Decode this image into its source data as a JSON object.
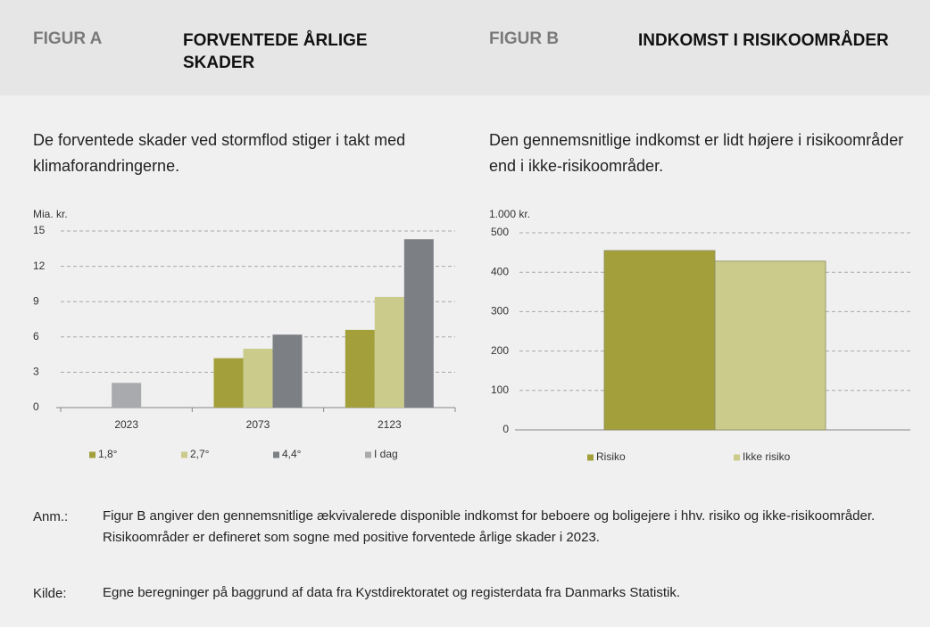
{
  "chart_data": [
    {
      "type": "bar",
      "label": "FIGUR A",
      "title": "FORVENTEDE ÅRLIGE SKADER",
      "subtitle": "De forventede skader ved stormflod stiger i takt med klimaforandringerne.",
      "ylabel": "Mia. kr.",
      "categories": [
        "2023",
        "2073",
        "2123"
      ],
      "series": [
        {
          "name": "1,8°",
          "color": "#a3a03c",
          "values": [
            null,
            4.2,
            6.6
          ]
        },
        {
          "name": "2,7°",
          "color": "#cbcb8c",
          "values": [
            null,
            5.0,
            9.4
          ]
        },
        {
          "name": "4,4°",
          "color": "#7c7f83",
          "values": [
            null,
            6.2,
            14.3
          ]
        },
        {
          "name": "I dag",
          "color": "#a8aaad",
          "values": [
            2.1,
            null,
            null
          ]
        }
      ],
      "ylim": [
        0,
        15
      ],
      "yticks": [
        0,
        3,
        6,
        9,
        12,
        15
      ],
      "grid": true
    },
    {
      "type": "bar",
      "label": "FIGUR B",
      "title": "INDKOMST I RISIKOOMRÅDER",
      "subtitle": "Den gennemsnitlige indkomst er lidt højere i risikoområder end i ikke-risikoområder.",
      "ylabel": "1.000 kr.",
      "categories": [
        null
      ],
      "series": [
        {
          "name": "Risiko",
          "color": "#a3a03c",
          "values": [
            455
          ]
        },
        {
          "name": "Ikke risiko",
          "color": "#cbcb8c",
          "values": [
            428
          ]
        }
      ],
      "ylim": [
        0,
        500
      ],
      "yticks": [
        0,
        100,
        200,
        300,
        400,
        500
      ],
      "grid": true
    }
  ],
  "notes": [
    {
      "label": "Anm.:",
      "text": "Figur B angiver den gennemsnitlige ækvivalerede disponible indkomst for beboere og boligejere i hhv. risiko og ikke-risikoområder. Risikoområder er defineret som sogne med positive forventede årlige skader i 2023."
    },
    {
      "label": "Kilde:",
      "text": "Egne beregninger på baggrund af data fra Kystdirektoratet og registerdata fra Danmarks Statistik."
    }
  ]
}
